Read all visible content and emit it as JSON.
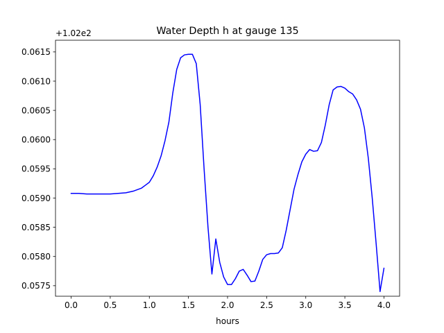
{
  "chart_data": {
    "type": "line",
    "title": "Water Depth h at gauge 135",
    "xlabel": "hours",
    "ylabel": "",
    "offset_text": "+1.02e2",
    "xlim": [
      -0.2,
      4.2
    ],
    "ylim": [
      0.05732,
      0.0617
    ],
    "grid": false,
    "legend": "none",
    "x_ticks": [
      0.0,
      0.5,
      1.0,
      1.5,
      2.0,
      2.5,
      3.0,
      3.5,
      4.0
    ],
    "x_tick_labels": [
      "0.0",
      "0.5",
      "1.0",
      "1.5",
      "2.0",
      "2.5",
      "3.0",
      "3.5",
      "4.0"
    ],
    "y_ticks": [
      0.0575,
      0.058,
      0.0585,
      0.059,
      0.0595,
      0.06,
      0.0605,
      0.061,
      0.0615
    ],
    "y_tick_labels": [
      "0.0575",
      "0.0580",
      "0.0585",
      "0.0590",
      "0.0595",
      "0.0600",
      "0.0605",
      "0.0610",
      "0.0615"
    ],
    "series": [
      {
        "color": "#0000ff",
        "x": [
          0.0,
          0.1,
          0.2,
          0.3,
          0.4,
          0.5,
          0.6,
          0.7,
          0.8,
          0.9,
          0.95,
          1.0,
          1.05,
          1.1,
          1.15,
          1.2,
          1.25,
          1.3,
          1.35,
          1.4,
          1.45,
          1.5,
          1.55,
          1.6,
          1.65,
          1.7,
          1.75,
          1.8,
          1.85,
          1.9,
          1.95,
          2.0,
          2.05,
          2.1,
          2.15,
          2.2,
          2.25,
          2.3,
          2.35,
          2.4,
          2.45,
          2.5,
          2.55,
          2.6,
          2.65,
          2.7,
          2.75,
          2.8,
          2.85,
          2.9,
          2.95,
          3.0,
          3.05,
          3.1,
          3.15,
          3.2,
          3.25,
          3.3,
          3.35,
          3.4,
          3.45,
          3.5,
          3.55,
          3.6,
          3.65,
          3.7,
          3.75,
          3.8,
          3.85,
          3.9,
          3.95,
          4.0
        ],
        "values": [
          0.05908,
          0.05908,
          0.05907,
          0.05907,
          0.05907,
          0.05907,
          0.05908,
          0.05909,
          0.05912,
          0.05917,
          0.05922,
          0.05927,
          0.05938,
          0.05953,
          0.05972,
          0.05998,
          0.0603,
          0.0608,
          0.0612,
          0.0614,
          0.06145,
          0.06146,
          0.06146,
          0.0613,
          0.0606,
          0.0595,
          0.0585,
          0.0577,
          0.0583,
          0.0579,
          0.05765,
          0.05752,
          0.05752,
          0.05762,
          0.05775,
          0.05778,
          0.05768,
          0.05757,
          0.05758,
          0.05775,
          0.05795,
          0.05803,
          0.05805,
          0.05805,
          0.05806,
          0.05815,
          0.05845,
          0.0588,
          0.05915,
          0.0594,
          0.05962,
          0.05975,
          0.05983,
          0.0598,
          0.05981,
          0.05995,
          0.06025,
          0.0606,
          0.06085,
          0.0609,
          0.06091,
          0.06088,
          0.06082,
          0.06078,
          0.06068,
          0.06052,
          0.0602,
          0.05968,
          0.059,
          0.05822,
          0.0574,
          0.0578
        ]
      }
    ]
  }
}
